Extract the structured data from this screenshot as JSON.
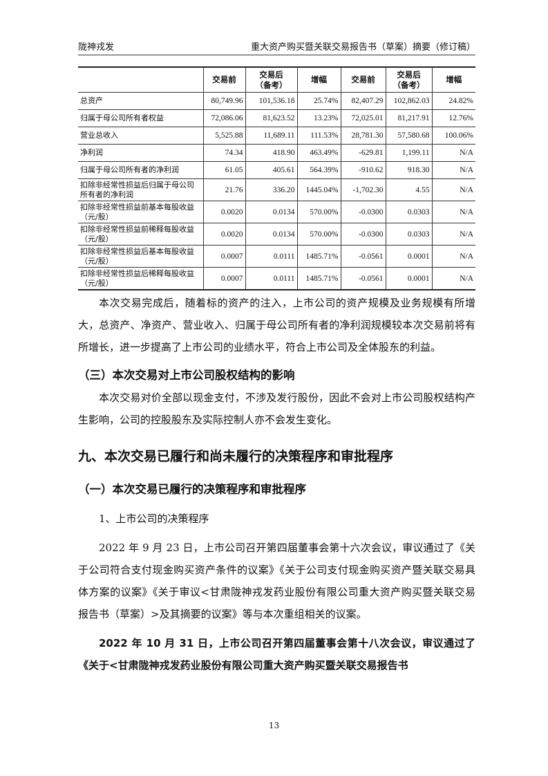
{
  "header": {
    "left": "陇神戎发",
    "right": "重大资产购买暨关联交易报告书（草案）摘要（修订稿）"
  },
  "table": {
    "columns": [
      "",
      "交易前",
      "交易后（备考）",
      "增幅",
      "交易前",
      "交易后（备考）",
      "增幅"
    ],
    "rows": [
      [
        "总资产",
        "80,749.96",
        "101,536.18",
        "25.74%",
        "82,407.29",
        "102,862.03",
        "24.82%"
      ],
      [
        "归属于母公司所有者权益",
        "72,086.06",
        "81,623.52",
        "13.23%",
        "72,025.01",
        "81,217.91",
        "12.76%"
      ],
      [
        "营业总收入",
        "5,525.88",
        "11,689.11",
        "111.53%",
        "28,781.30",
        "57,580.68",
        "100.06%"
      ],
      [
        "净利润",
        "74.34",
        "418.90",
        "463.49%",
        "-629.81",
        "1,199.11",
        "N/A"
      ],
      [
        "归属于母公司所有者的净利润",
        "61.05",
        "405.61",
        "564.39%",
        "-910.62",
        "918.30",
        "N/A"
      ],
      [
        "扣除非经常性损益后归属于母公司所有者的净利润",
        "21.76",
        "336.20",
        "1445.04%",
        "-1,702.30",
        "4.55",
        "N/A"
      ],
      [
        "扣除非经常性损益前基本每股收益（元/股）",
        "0.0020",
        "0.0134",
        "570.00%",
        "-0.0300",
        "0.0303",
        "N/A"
      ],
      [
        "扣除非经常性损益前稀释每股收益（元/股）",
        "0.0020",
        "0.0134",
        "570.00%",
        "-0.0300",
        "0.0303",
        "N/A"
      ],
      [
        "扣除非经常性损益后基本每股收益（元/股）",
        "0.0007",
        "0.0111",
        "1485.71%",
        "-0.0561",
        "0.0001",
        "N/A"
      ],
      [
        "扣除非经常性损益后稀释每股收益（元/股）",
        "0.0007",
        "0.0111",
        "1485.71%",
        "-0.0561",
        "0.0001",
        "N/A"
      ]
    ]
  },
  "para1": "本次交易完成后，随着标的资产的注入，上市公司的资产规模及业务规模有所增大，总资产、净资产、营业收入、归属于母公司所有者的净利润规模较本次交易前将有所增长，进一步提高了上市公司的业绩水平，符合上市公司及全体股东的利益。",
  "heading3": "（三）本次交易对上市公司股权结构的影响",
  "para2": "本次交易对价全部以现金支付，不涉及发行股份，因此不会对上市公司股权结构产生影响，公司的控股股东及实际控制人亦不会发生变化。",
  "heading9": "九、本次交易已履行和尚未履行的决策程序和审批程序",
  "heading9_1": "（一）本次交易已履行的决策程序和审批程序",
  "sub1": "1、上市公司的决策程序",
  "para3": "2022 年 9 月 23 日，上市公司召开第四届董事会第十六次会议，审议通过了《关于公司符合支付现金购买资产条件的议案》《关于公司支付现金购买资产暨关联交易具体方案的议案》《关于审议<甘肃陇神戎发药业股份有限公司重大资产购买暨关联交易报告书（草案）>及其摘要的议案》等与本次重组相关的议案。",
  "para4": "2022 年 10 月 31 日，上市公司召开第四届董事会第十八次会议，审议通过了《关于<甘肃陇神戎发药业股份有限公司重大资产购买暨关联交易报告书",
  "page_number": "13"
}
